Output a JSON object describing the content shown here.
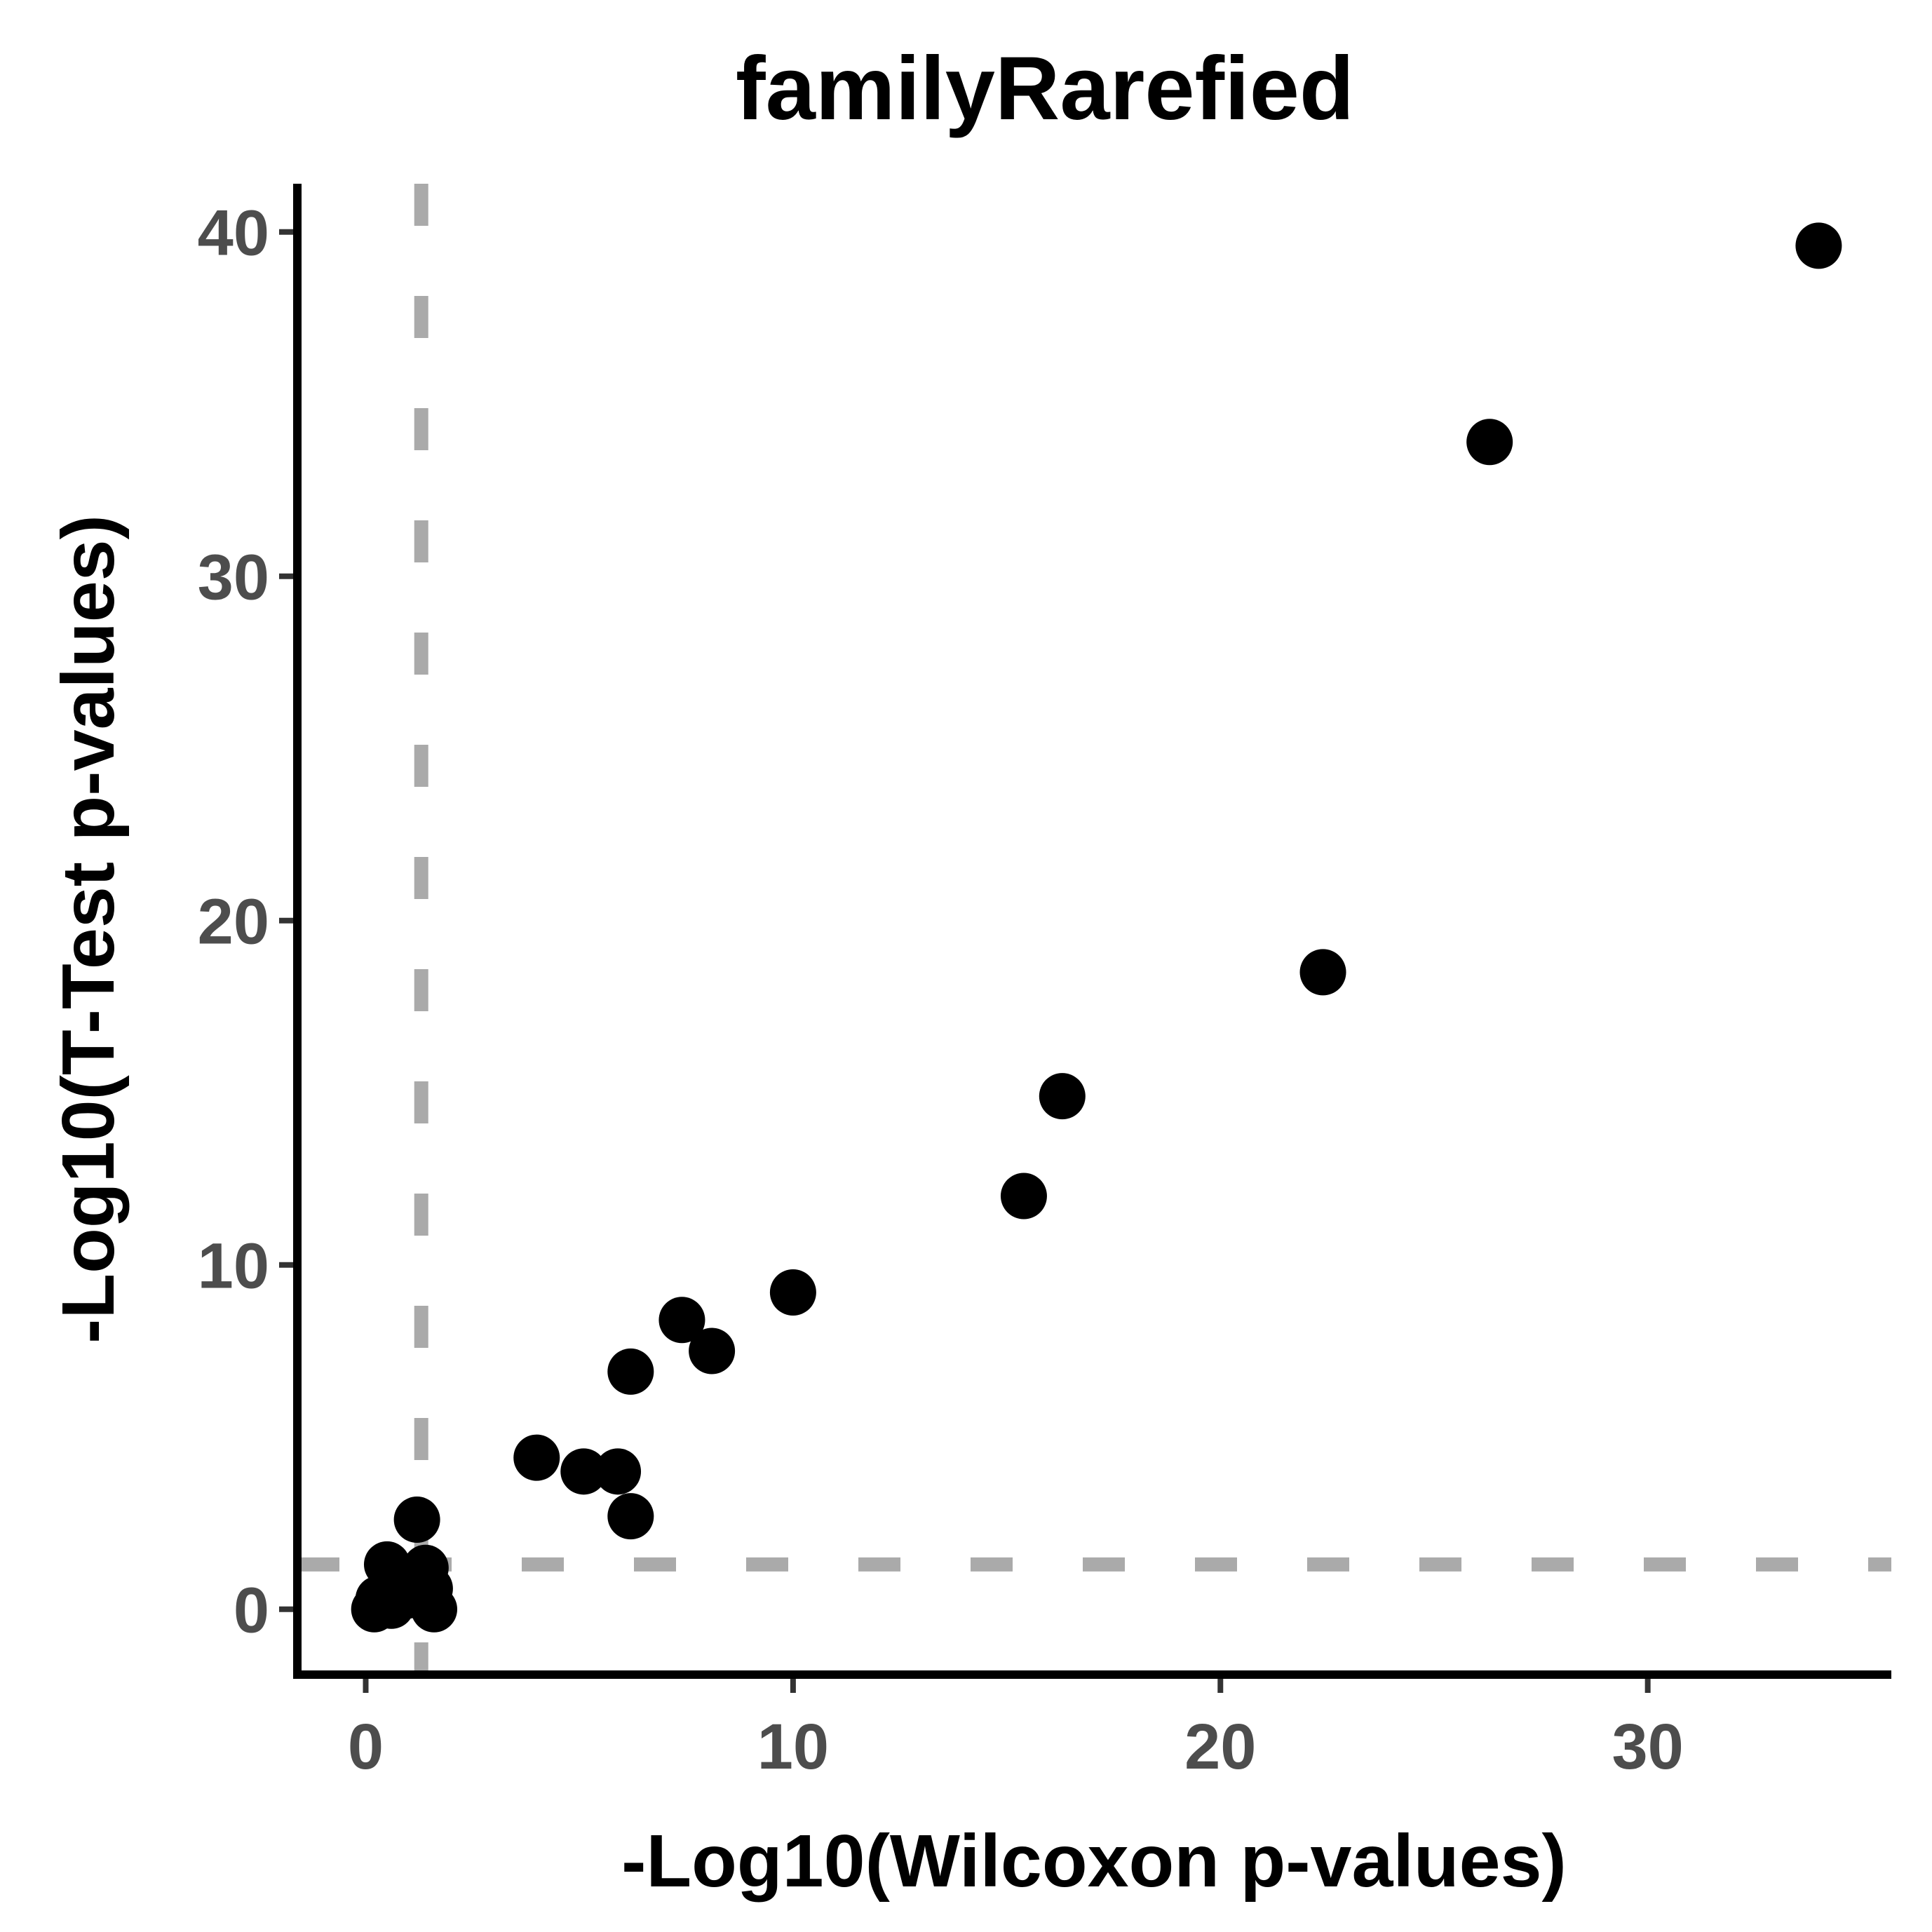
{
  "chart_data": {
    "type": "scatter",
    "title": "familyRarefied",
    "xlabel": "-Log10(Wilcoxon p-values)",
    "ylabel": "-Log10(T-Test p-values)",
    "xlim": [
      -1.6,
      35.7
    ],
    "ylim": [
      -1.9,
      41.4
    ],
    "x_ticks": [
      0,
      10,
      20,
      30
    ],
    "y_ticks": [
      0,
      10,
      20,
      30,
      40
    ],
    "x_tick_labels": [
      "0",
      "10",
      "20",
      "30"
    ],
    "y_tick_labels": [
      "0",
      "10",
      "20",
      "30",
      "40"
    ],
    "grid": false,
    "legend": "none",
    "reference_lines": [
      {
        "orientation": "vertical",
        "value": 1.3,
        "style": "dashed",
        "color": "#aaaaaa"
      },
      {
        "orientation": "horizontal",
        "value": 1.3,
        "style": "dashed",
        "color": "#aaaaaa"
      }
    ],
    "point_color": "#000000",
    "points": [
      {
        "x": 34.0,
        "y": 39.6
      },
      {
        "x": 26.3,
        "y": 33.9
      },
      {
        "x": 22.4,
        "y": 18.5
      },
      {
        "x": 16.3,
        "y": 14.9
      },
      {
        "x": 15.4,
        "y": 12.0
      },
      {
        "x": 10.0,
        "y": 9.2
      },
      {
        "x": 7.4,
        "y": 8.4
      },
      {
        "x": 8.1,
        "y": 7.5
      },
      {
        "x": 6.2,
        "y": 6.9
      },
      {
        "x": 4.0,
        "y": 4.4
      },
      {
        "x": 5.1,
        "y": 4.0
      },
      {
        "x": 5.9,
        "y": 4.0
      },
      {
        "x": 6.2,
        "y": 2.7
      },
      {
        "x": 1.2,
        "y": 2.6
      },
      {
        "x": 0.5,
        "y": 1.3
      },
      {
        "x": 1.4,
        "y": 1.2
      },
      {
        "x": 0.9,
        "y": 0.9
      },
      {
        "x": 1.5,
        "y": 0.6
      },
      {
        "x": 1.0,
        "y": 0.4
      },
      {
        "x": 0.3,
        "y": 0.3
      },
      {
        "x": 0.6,
        "y": 0.1
      },
      {
        "x": 0.2,
        "y": 0.0
      },
      {
        "x": 1.6,
        "y": 0.0
      }
    ]
  }
}
